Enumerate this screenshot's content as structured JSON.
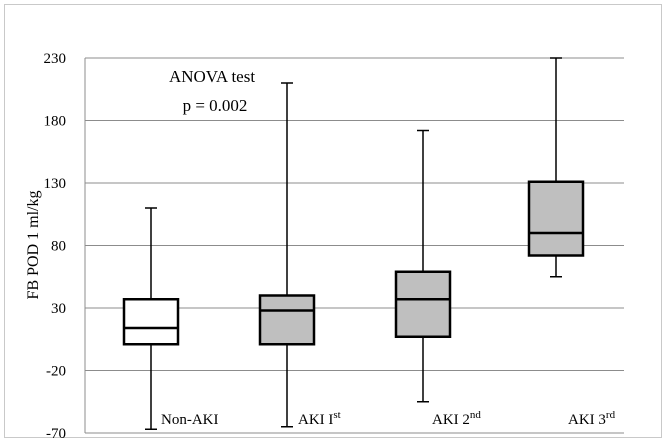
{
  "chart_data": {
    "type": "boxplot",
    "title": "",
    "xlabel": "",
    "ylabel": "FB POD 1 ml/kg",
    "ylim": [
      -70,
      230
    ],
    "yticks": [
      -70,
      -20,
      30,
      80,
      130,
      180,
      230
    ],
    "ytick_labels": [
      "-70",
      "-20",
      "30",
      "80",
      "130",
      "180",
      "230"
    ],
    "grid": true,
    "annotation": {
      "line1": "ANOVA test",
      "line2": "p = 0.002"
    },
    "categories": [
      {
        "label": "Non-AKI",
        "base": "Non-AKI",
        "sup": ""
      },
      {
        "label": "AKI Ist",
        "base": "AKI I",
        "sup": "st"
      },
      {
        "label": "AKI 2nd",
        "base": "AKI 2",
        "sup": "nd"
      },
      {
        "label": "AKI 3rd",
        "base": "AKI 3",
        "sup": "rd"
      }
    ],
    "boxes": [
      {
        "min": -67,
        "q1": 1,
        "median": 14,
        "q3": 37,
        "max": 110,
        "fill": "#ffffff"
      },
      {
        "min": -65,
        "q1": 1,
        "median": 28,
        "q3": 40,
        "max": 210,
        "fill": "#bfbfbf"
      },
      {
        "min": -45,
        "q1": 7,
        "median": 37,
        "q3": 59,
        "max": 172,
        "fill": "#bfbfbf"
      },
      {
        "min": 55,
        "q1": 72,
        "median": 90,
        "q3": 131,
        "max": 230,
        "fill": "#bfbfbf"
      }
    ]
  }
}
